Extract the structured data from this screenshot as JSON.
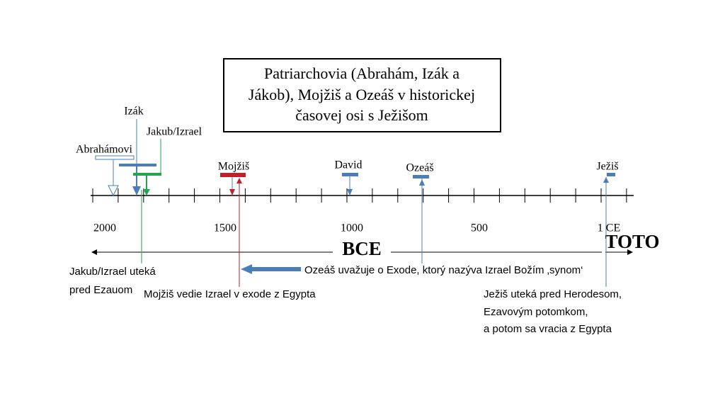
{
  "title": {
    "lines": [
      "Patriarchovia (Abrahám, Izák a",
      "Jákob), Mojžiš a Ozeáš v historickej",
      "časovej osi s Ježišom"
    ]
  },
  "timeline": {
    "ticks": [
      "2000",
      "1500",
      "1000",
      "500",
      "1 CE"
    ],
    "era_left": "BCE",
    "era_right": "TOTO"
  },
  "events": [
    {
      "label": "Abrahámovi"
    },
    {
      "label": "Izák"
    },
    {
      "label": "Jakub/Izrael"
    },
    {
      "label": "Mojžiš"
    },
    {
      "label": "David"
    },
    {
      "label": "Ozeáš"
    },
    {
      "label": "Ježiš"
    }
  ],
  "notes": [
    {
      "lines": [
        "Jakub/Izrael uteká",
        "pred Ezauom"
      ]
    },
    {
      "lines": [
        "Mojžiš vedie Izrael v exode z Egypta"
      ]
    },
    {
      "lines": [
        "Ozeáš uvažuje o Exode, ktorý nazýva Izrael Božím ‚synom‘"
      ]
    },
    {
      "lines": [
        "Ježiš uteká pred Herodesom,",
        "Ezavovým potomkom,",
        "a potom sa vracia z Egypta"
      ]
    }
  ]
}
